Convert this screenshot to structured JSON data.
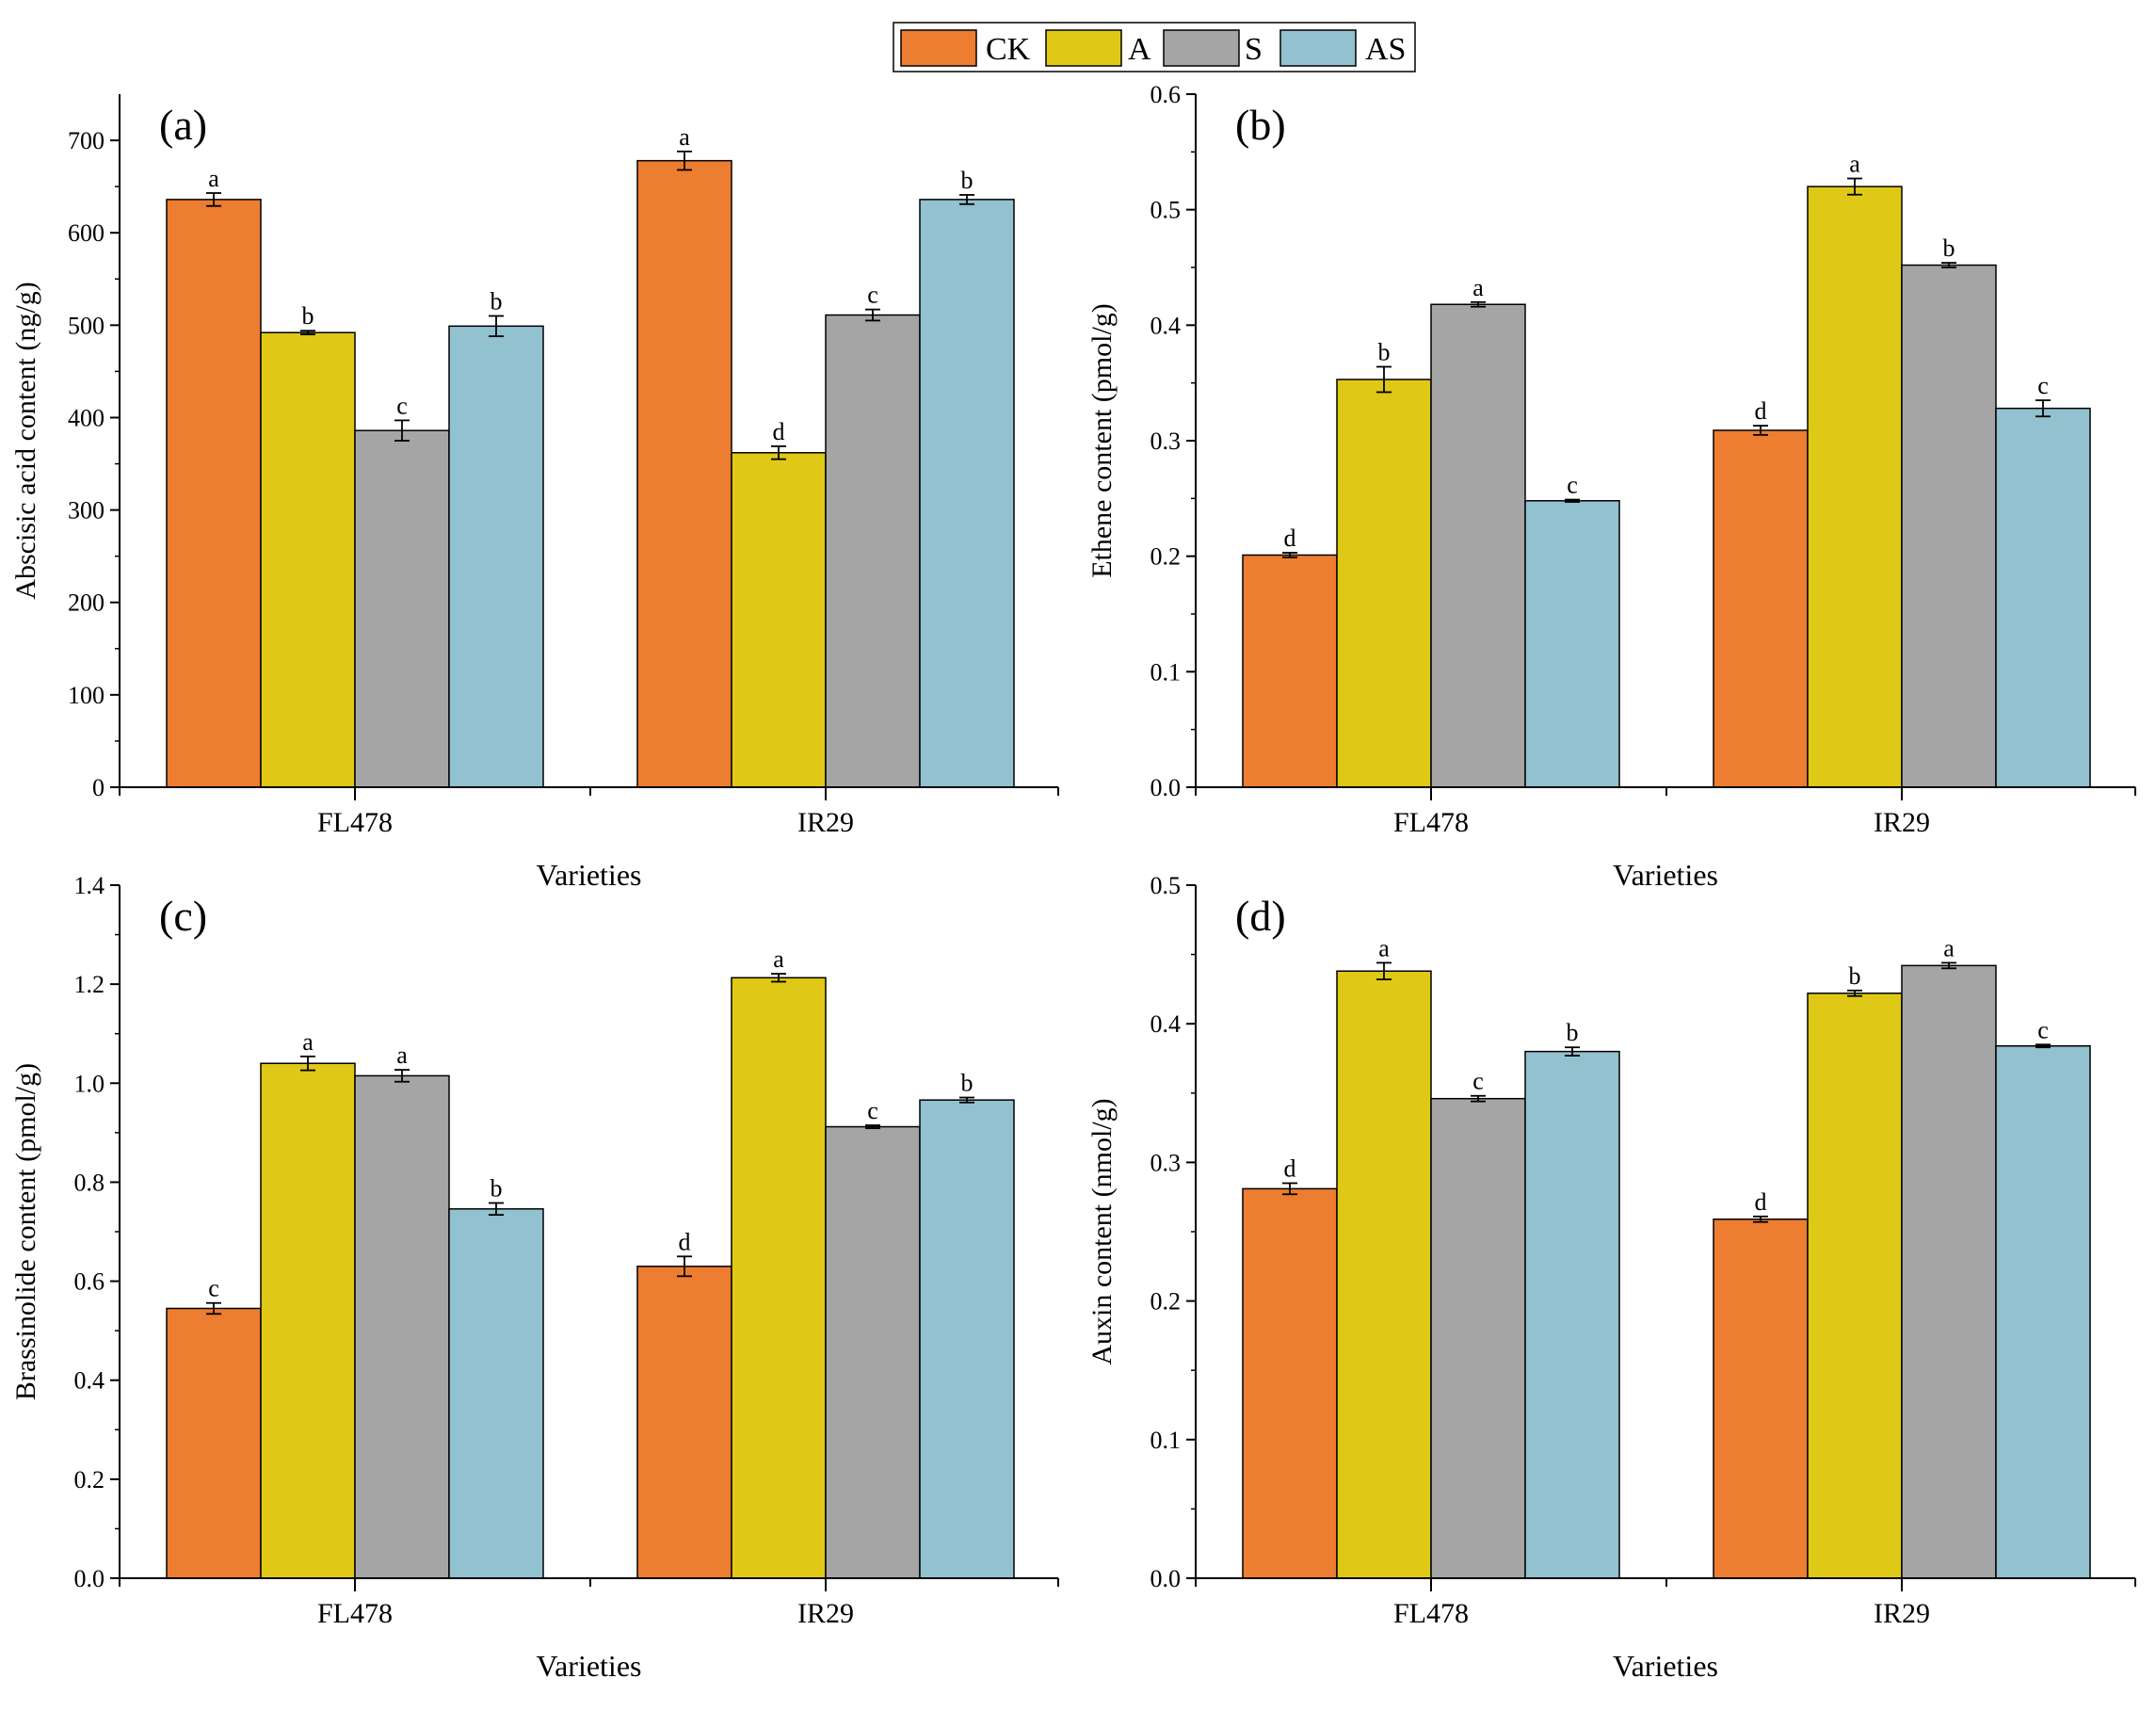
{
  "legend": {
    "items": [
      {
        "label": "CK",
        "color": "#ED7D31"
      },
      {
        "label": "A",
        "color": "#DFC916"
      },
      {
        "label": "S",
        "color": "#A5A5A5"
      },
      {
        "label": "AS",
        "color": "#92C1D0"
      }
    ]
  },
  "chart_data": [
    {
      "type": "bar",
      "panel_label": "(a)",
      "categories": [
        "FL478",
        "IR29"
      ],
      "series": [
        {
          "name": "CK",
          "values": [
            636,
            678
          ],
          "errors": [
            7,
            10
          ],
          "letters": [
            "a",
            "a"
          ]
        },
        {
          "name": "A",
          "values": [
            492,
            362
          ],
          "errors": [
            2,
            7
          ],
          "letters": [
            "b",
            "d"
          ]
        },
        {
          "name": "S",
          "values": [
            386,
            511
          ],
          "errors": [
            11,
            6
          ],
          "letters": [
            "c",
            "c"
          ]
        },
        {
          "name": "AS",
          "values": [
            499,
            636
          ],
          "errors": [
            11,
            5
          ],
          "letters": [
            "b",
            "b"
          ]
        }
      ],
      "xlabel": "Varieties",
      "ylabel": "Abscisic acid content (ng/g)",
      "ylim": [
        0,
        750
      ],
      "yticks": [
        "0",
        "100",
        "200",
        "300",
        "400",
        "500",
        "600",
        "700"
      ]
    },
    {
      "type": "bar",
      "panel_label": "(b)",
      "categories": [
        "FL478",
        "IR29"
      ],
      "series": [
        {
          "name": "CK",
          "values": [
            0.201,
            0.309
          ],
          "errors": [
            0.002,
            0.004
          ],
          "letters": [
            "d",
            "d"
          ]
        },
        {
          "name": "A",
          "values": [
            0.353,
            0.52
          ],
          "errors": [
            0.011,
            0.007
          ],
          "letters": [
            "b",
            "a"
          ]
        },
        {
          "name": "S",
          "values": [
            0.418,
            0.452
          ],
          "errors": [
            0.002,
            0.002
          ],
          "letters": [
            "a",
            "b"
          ]
        },
        {
          "name": "AS",
          "values": [
            0.248,
            0.328
          ],
          "errors": [
            0.001,
            0.007
          ],
          "letters": [
            "c",
            "c"
          ]
        }
      ],
      "xlabel": "Varieties",
      "ylabel": "Ethene content (pmol/g)",
      "ylim": [
        0,
        0.6
      ],
      "yticks": [
        "0.0",
        "0.1",
        "0.2",
        "0.3",
        "0.4",
        "0.5",
        "0.6"
      ]
    },
    {
      "type": "bar",
      "panel_label": "(c)",
      "categories": [
        "FL478",
        "IR29"
      ],
      "series": [
        {
          "name": "CK",
          "values": [
            0.545,
            0.63
          ],
          "errors": [
            0.011,
            0.02
          ],
          "letters": [
            "c",
            "d"
          ]
        },
        {
          "name": "A",
          "values": [
            1.04,
            1.213
          ],
          "errors": [
            0.014,
            0.008
          ],
          "letters": [
            "a",
            "a"
          ]
        },
        {
          "name": "S",
          "values": [
            1.015,
            0.912
          ],
          "errors": [
            0.012,
            0.003
          ],
          "letters": [
            "a",
            "c"
          ]
        },
        {
          "name": "AS",
          "values": [
            0.746,
            0.966
          ],
          "errors": [
            0.012,
            0.005
          ],
          "letters": [
            "b",
            "b"
          ]
        }
      ],
      "xlabel": "Varieties",
      "ylabel": "Brassinolide content (pmol/g)",
      "ylim": [
        0,
        1.4
      ],
      "yticks": [
        "0.0",
        "0.2",
        "0.4",
        "0.6",
        "0.8",
        "1.0",
        "1.2",
        "1.4"
      ]
    },
    {
      "type": "bar",
      "panel_label": "(d)",
      "categories": [
        "FL478",
        "IR29"
      ],
      "series": [
        {
          "name": "CK",
          "values": [
            0.281,
            0.259
          ],
          "errors": [
            0.004,
            0.002
          ],
          "letters": [
            "d",
            "d"
          ]
        },
        {
          "name": "A",
          "values": [
            0.438,
            0.422
          ],
          "errors": [
            0.006,
            0.002
          ],
          "letters": [
            "a",
            "b"
          ]
        },
        {
          "name": "S",
          "values": [
            0.346,
            0.442
          ],
          "errors": [
            0.002,
            0.002
          ],
          "letters": [
            "c",
            "a"
          ]
        },
        {
          "name": "AS",
          "values": [
            0.38,
            0.384
          ],
          "errors": [
            0.003,
            0.001
          ],
          "letters": [
            "b",
            "c"
          ]
        }
      ],
      "xlabel": "Varieties",
      "ylabel": "Auxin content (nmol/g)",
      "ylim": [
        0,
        0.5
      ],
      "yticks": [
        "0.0",
        "0.1",
        "0.2",
        "0.3",
        "0.4",
        "0.5"
      ]
    }
  ]
}
